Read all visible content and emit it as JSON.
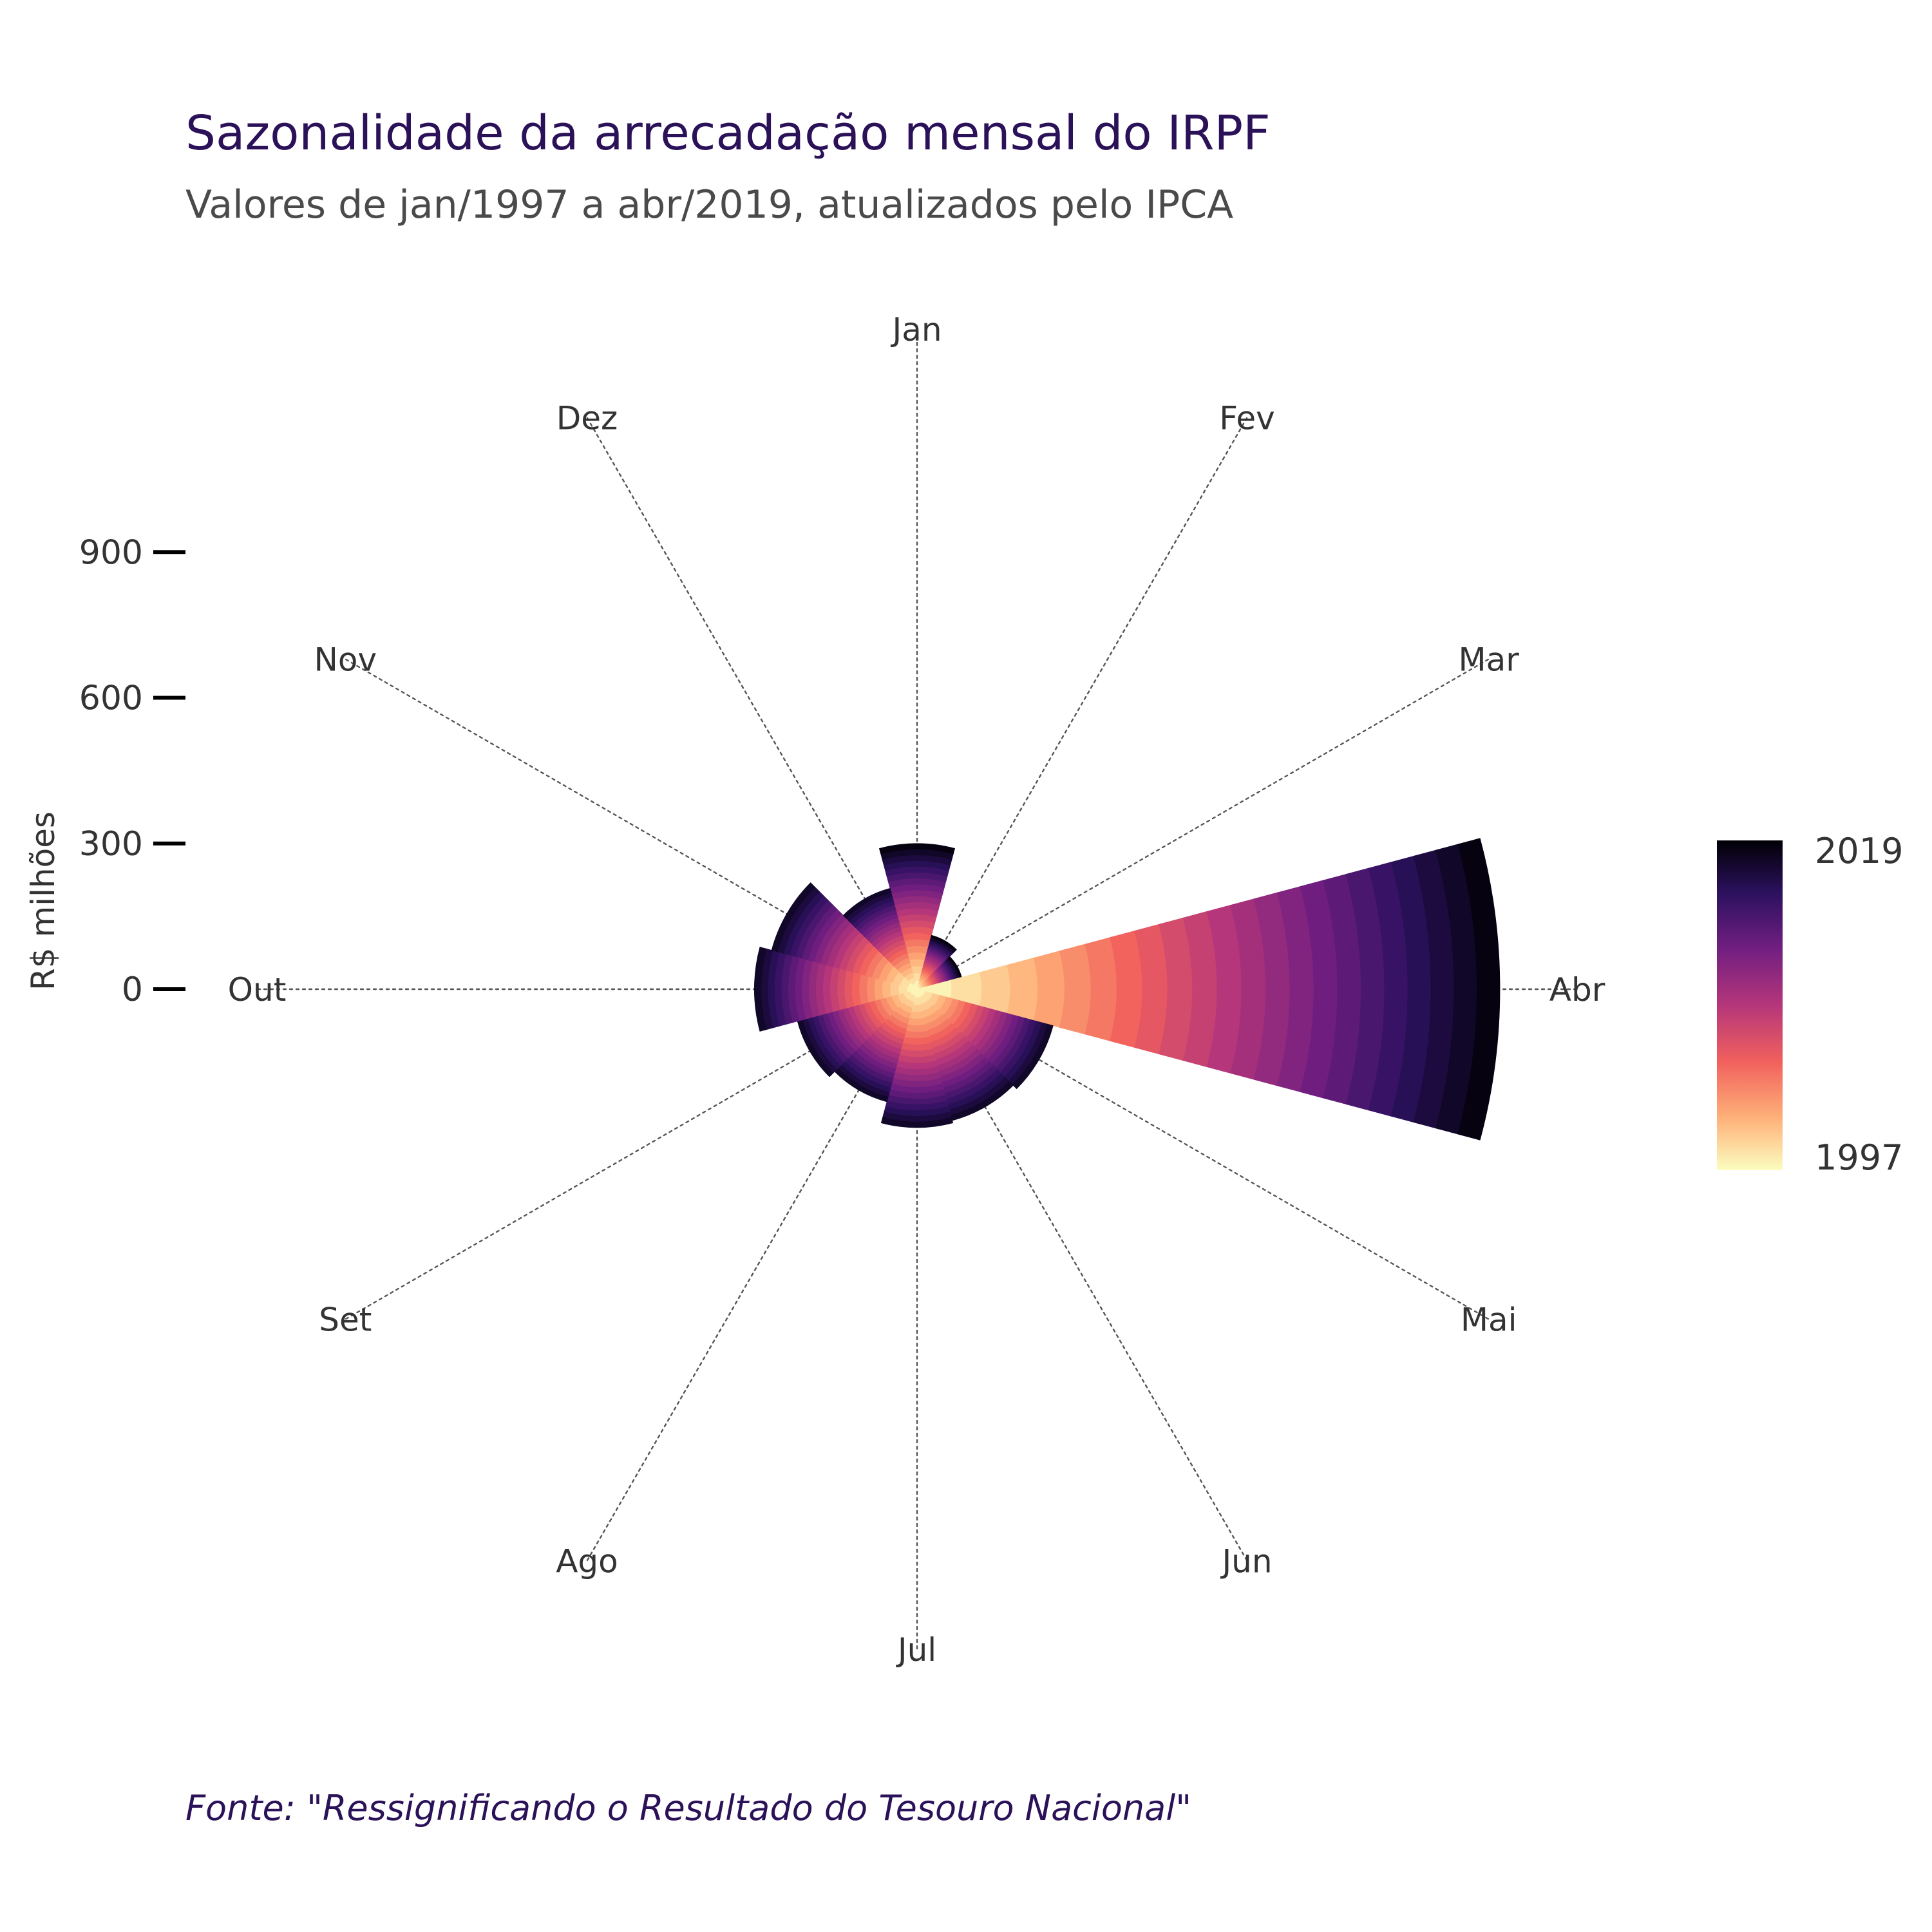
{
  "chart_data": {
    "type": "polar-bar",
    "title": "Sazonalidade da arrecadação mensal do IRPF",
    "subtitle": "Valores de jan/1997 a abr/2019, atualizados pelo IPCA",
    "caption": "Fonte: \"Ressignificando o Resultado do Tesouro Nacional\"",
    "ylabel": "R$ milhões",
    "radial_ticks": [
      "0",
      "300",
      "600",
      "900"
    ],
    "radial_tick_values": [
      0,
      300,
      600,
      900
    ],
    "months": [
      "Jan",
      "Fev",
      "Mar",
      "Abr",
      "Mai",
      "Jun",
      "Jul",
      "Ago",
      "Set",
      "Out",
      "Nov",
      "Dez"
    ],
    "radial_max": 1200,
    "legend": {
      "title": "",
      "top_label": "2019",
      "bottom_label": "1997",
      "start_year": 1997,
      "end_year": 2019
    },
    "max_values_by_month": {
      "Jan": 300,
      "Fev": 115,
      "Mar": 95,
      "Abr": 1200,
      "Mai": 290,
      "Jun": 280,
      "Jul": 285,
      "Ago": 240,
      "Set": 255,
      "Out": 335,
      "Nov": 310,
      "Dez": 215
    },
    "colors": {
      "title": "#2a1158",
      "subtitle": "#4a4a4a",
      "text": "#333333",
      "grid": "#555555",
      "caption": "#2a1158",
      "scale": [
        "#fcfdbf",
        "#feb078",
        "#f1605d",
        "#b5367a",
        "#721f81",
        "#2c115f",
        "#000004"
      ]
    }
  }
}
